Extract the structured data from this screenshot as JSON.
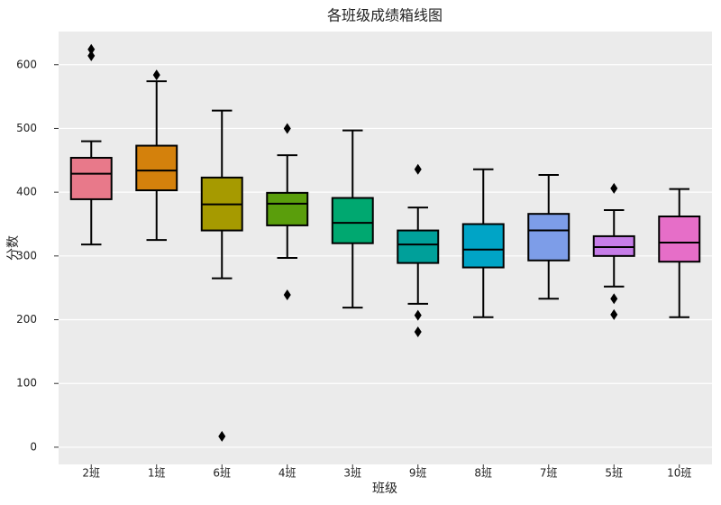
{
  "chart_data": {
    "type": "box",
    "title": "各班级成绩箱线图",
    "x_label": "班级",
    "y_label": "分数",
    "categories": [
      "2班",
      "1班",
      "6班",
      "4班",
      "3班",
      "9班",
      "8班",
      "7班",
      "5班",
      "10班"
    ],
    "colors": [
      "#e8798a",
      "#d4810c",
      "#a69a00",
      "#5a9e0c",
      "#00a870",
      "#00a09a",
      "#00a4c6",
      "#7d9de8",
      "#c67de8",
      "#e66ec8"
    ],
    "boxes": [
      {
        "min": 318,
        "q1": 389,
        "median": 429,
        "q3": 454,
        "max": 480,
        "outliers": [
          624,
          614
        ]
      },
      {
        "min": 325,
        "q1": 403,
        "median": 434,
        "q3": 473,
        "max": 574,
        "outliers": [
          584
        ]
      },
      {
        "min": 265,
        "q1": 340,
        "median": 381,
        "q3": 423,
        "max": 528,
        "outliers": [
          17
        ]
      },
      {
        "min": 297,
        "q1": 348,
        "median": 382,
        "q3": 399,
        "max": 458,
        "outliers": [
          500,
          239
        ]
      },
      {
        "min": 219,
        "q1": 320,
        "median": 352,
        "q3": 391,
        "max": 497,
        "outliers": []
      },
      {
        "min": 225,
        "q1": 289,
        "median": 318,
        "q3": 340,
        "max": 376,
        "outliers": [
          436,
          207,
          181
        ]
      },
      {
        "min": 204,
        "q1": 282,
        "median": 310,
        "q3": 350,
        "max": 436,
        "outliers": []
      },
      {
        "min": 233,
        "q1": 293,
        "median": 340,
        "q3": 366,
        "max": 427,
        "outliers": []
      },
      {
        "min": 252,
        "q1": 300,
        "median": 314,
        "q3": 331,
        "max": 372,
        "outliers": [
          406,
          233,
          208
        ]
      },
      {
        "min": 204,
        "q1": 291,
        "median": 321,
        "q3": 362,
        "max": 405,
        "outliers": []
      }
    ],
    "ylim": [
      -27,
      652
    ],
    "yticks": [
      0,
      100,
      200,
      300,
      400,
      500,
      600
    ],
    "grid": true
  }
}
